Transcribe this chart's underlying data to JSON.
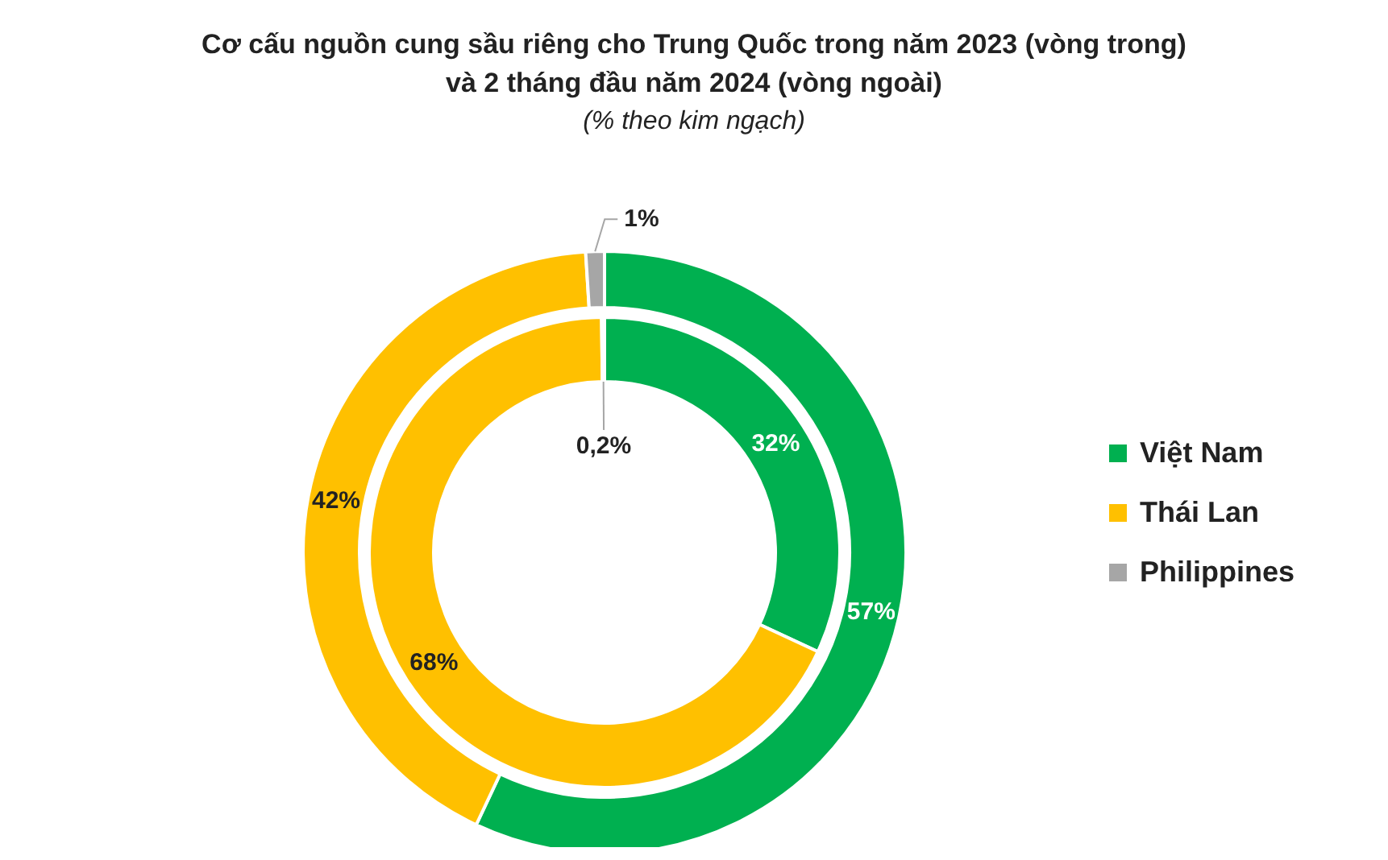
{
  "chart_data": {
    "type": "donut",
    "title": "Cơ cấu nguồn cung sầu riêng cho Trung Quốc trong năm 2023 (vòng trong)\nvà 2 tháng đầu năm 2024 (vòng ngoài)",
    "subtitle": "(% theo kim ngạch)",
    "categories": [
      "Việt Nam",
      "Thái Lan",
      "Philippines"
    ],
    "colors": [
      "#00b050",
      "#ffc000",
      "#a6a6a6"
    ],
    "series": [
      {
        "values": [
          32,
          68,
          0.2
        ],
        "value_labels": [
          "32%",
          "68%",
          "0,2%"
        ]
      },
      {
        "values": [
          57,
          42,
          1
        ],
        "value_labels": [
          "57%",
          "42%",
          "1%"
        ]
      }
    ],
    "legend": "right"
  }
}
